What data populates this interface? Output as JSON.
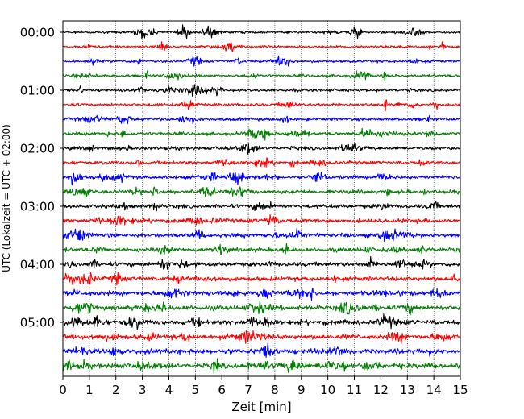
{
  "chart_data": {
    "type": "line",
    "subtype": "helicorder",
    "xlabel": "Zeit  [min]",
    "ylabel": "UTC (Lokalzeit = UTC + 02:00)",
    "xlim": [
      0,
      15
    ],
    "x_ticks": [
      0,
      1,
      2,
      3,
      4,
      5,
      6,
      7,
      8,
      9,
      10,
      11,
      12,
      13,
      14,
      15
    ],
    "x_tick_labels": [
      "0",
      "1",
      "2",
      "3",
      "4",
      "5",
      "6",
      "7",
      "8",
      "9",
      "10",
      "11",
      "12",
      "13",
      "14",
      "15"
    ],
    "y_tick_labels": [
      "00:00",
      "01:00",
      "02:00",
      "03:00",
      "04:00",
      "05:00"
    ],
    "rows_per_hour": 4,
    "minutes_per_row": 15,
    "row_count": 24,
    "row_colors": [
      "#000000",
      "#ff0000",
      "#0000ff",
      "#008000"
    ],
    "grid": {
      "x": true,
      "style": "dotted"
    }
  }
}
